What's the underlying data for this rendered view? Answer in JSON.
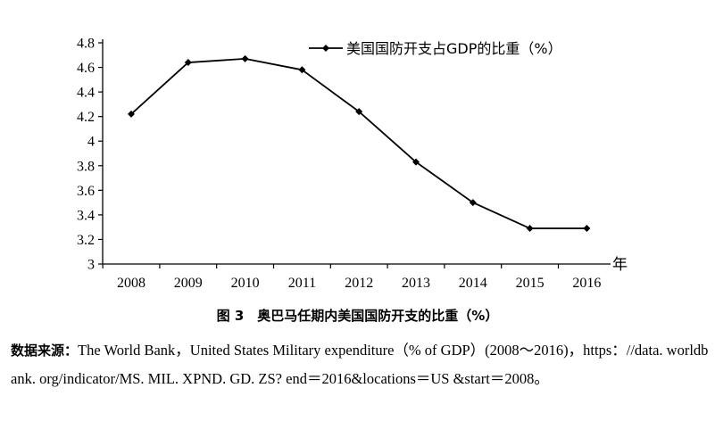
{
  "chart_data": {
    "type": "line",
    "categories": [
      "2008",
      "2009",
      "2010",
      "2011",
      "2012",
      "2013",
      "2014",
      "2015",
      "2016"
    ],
    "series": [
      {
        "name": "美国国防开支占GDP的比重（%）",
        "values": [
          4.22,
          4.64,
          4.67,
          4.58,
          4.24,
          3.83,
          3.5,
          3.29,
          3.29
        ]
      }
    ],
    "xlabel": "年",
    "ylabel": "",
    "ylim": [
      3,
      4.8
    ],
    "yticks": [
      "3",
      "3.2",
      "3.4",
      "3.6",
      "3.8",
      "4",
      "4.2",
      "4.4",
      "4.6",
      "4.8"
    ],
    "grid": false,
    "legend_position": "top-right",
    "marker": "diamond",
    "line_color": "#000000"
  },
  "caption": "图 3　奥巴马任期内美国国防开支的比重（%）",
  "source": {
    "lead": "数据来源：",
    "text": "The World Bank，United States Military expenditure（% of GDP）(2008～2016)，https：//data. worldbank. org/indicator/MS. MIL. XPND. GD. ZS? end＝2016&locations＝US &start＝2008。"
  }
}
